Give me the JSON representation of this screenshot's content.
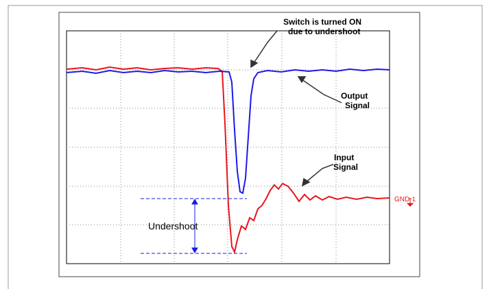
{
  "annotations": {
    "switch": [
      "Switch is turned ON",
      "due to undershoot"
    ],
    "output": [
      "Output",
      "Signal"
    ],
    "input": [
      "Input",
      "Signal"
    ],
    "undershoot": "Undershoot",
    "gnd": "GND",
    "channel": "1"
  }
}
